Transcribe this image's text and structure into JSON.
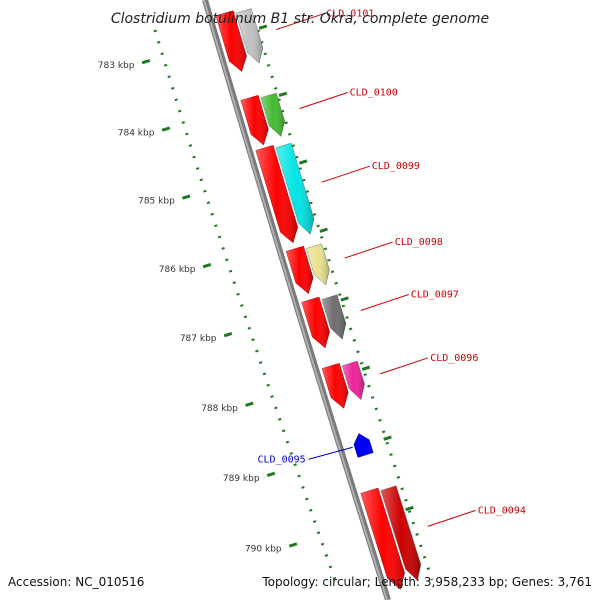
{
  "title": "Clostridium botulinum B1 str. Okra, complete genome",
  "footer": {
    "accession": "Accession: NC_010516",
    "topology": "Topology: circular; Length: 3,958,233 bp; Genes: 3,761"
  },
  "kbp_ticks": [
    {
      "label": "783 kbp",
      "t": 0.07
    },
    {
      "label": "784 kbp",
      "t": 0.185
    },
    {
      "label": "785 kbp",
      "t": 0.3
    },
    {
      "label": "786 kbp",
      "t": 0.415
    },
    {
      "label": "787 kbp",
      "t": 0.53
    },
    {
      "label": "788 kbp",
      "t": 0.645
    },
    {
      "label": "789 kbp",
      "t": 0.76
    },
    {
      "label": "790 kbp",
      "t": 0.875
    }
  ],
  "genes": [
    {
      "label": "CLD_0101",
      "color": "#cc0000",
      "t0": 0.03,
      "t1": 0.13,
      "fill": "#c0c0c0",
      "strand": "forward"
    },
    {
      "label": "CLD_0100",
      "color": "#cc0000",
      "t0": 0.175,
      "t1": 0.255,
      "fill": "#44bb33",
      "strand": "forward"
    },
    {
      "label": "CLD_0099",
      "color": "#cc0000",
      "t0": 0.26,
      "t1": 0.42,
      "fill": "#00e5e5",
      "strand": "forward"
    },
    {
      "label": "CLD_0098",
      "color": "#cc0000",
      "t0": 0.43,
      "t1": 0.505,
      "fill": "#e9e08e",
      "strand": "forward"
    },
    {
      "label": "CLD_0097",
      "color": "#cc0000",
      "t0": 0.515,
      "t1": 0.595,
      "fill": "#6e6e6e",
      "strand": "forward"
    },
    {
      "label": "CLD_0096",
      "color": "#cc0000",
      "t0": 0.625,
      "t1": 0.695,
      "fill": "#ee2299",
      "strand": "forward"
    },
    {
      "label": "CLD_0095",
      "color": "#0000cc",
      "t0": 0.74,
      "t1": 0.775,
      "fill": "#0000ff",
      "strand": "reverse"
    },
    {
      "label": "CLD_0094",
      "color": "#cc0000",
      "t0": 0.83,
      "t1": 0.99,
      "fill": "#cc0000",
      "strand": "forward"
    }
  ],
  "colors": {
    "backbone": "#808080",
    "cds": "#ff0000",
    "gc_tick": "#227722",
    "forward_label": "#cc0000",
    "reverse_label": "#0000cc"
  },
  "icons": {
    "forward_gene": "arrow-down-right-icon",
    "reverse_gene": "arrow-up-left-icon"
  }
}
